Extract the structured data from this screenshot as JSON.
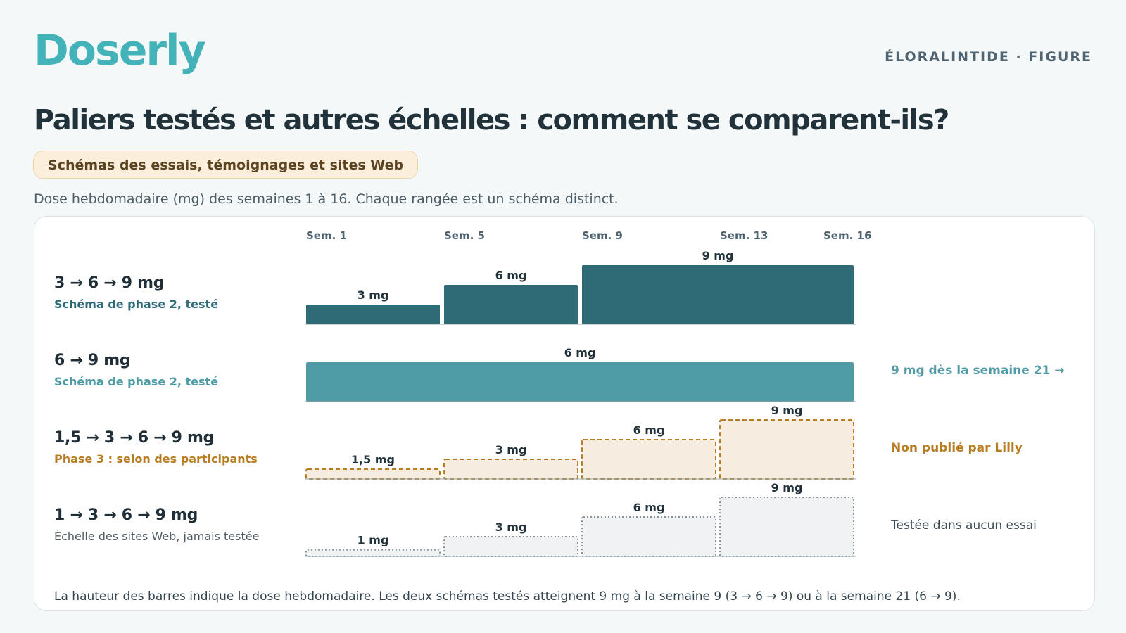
{
  "header": {
    "brand": "Doserly",
    "top_right": "ÉLORALINTIDE · FIGURE",
    "title": "Paliers testés et autres échelles : comment se comparent-ils?",
    "pill": "Schémas des essais, témoignages et sites Web",
    "subtitle": "Dose hebdomadaire (mg) des semaines 1 à 16. Chaque rangée est un schéma distinct."
  },
  "footnote": "La hauteur des barres indique la dose hebdomadaire. Les deux schémas testés atteignent 9 mg à la semaine 9 (3 → 6 → 9) ou à la semaine 21 (6 → 9).",
  "colors": {
    "brand": "#43b3b9",
    "tested_dark": "#2e6b77",
    "tested_light": "#4f9ca7",
    "participant_stroke": "#b87d23",
    "participant_fill": "#f6ece0",
    "website_stroke": "#8a9399",
    "website_fill": "#f0f2f4"
  },
  "chart_data": {
    "type": "bar",
    "x_unit": "semaine",
    "xlim": [
      1,
      16
    ],
    "x_ticks": [
      {
        "week": 1,
        "label": "Sem. 1"
      },
      {
        "week": 5,
        "label": "Sem. 5"
      },
      {
        "week": 9,
        "label": "Sem. 9"
      },
      {
        "week": 13,
        "label": "Sem. 13"
      },
      {
        "week": 16,
        "label": "Sem. 16"
      }
    ],
    "y_unit": "mg",
    "ylim": [
      0,
      9
    ],
    "rows": [
      {
        "name": "3 → 6 → 9 mg",
        "subtitle": "Schéma de phase 2, testé",
        "note": "",
        "style": "tested_dark",
        "segments": [
          {
            "start_week": 1,
            "end_week": 4,
            "dose": 3,
            "label": "3 mg"
          },
          {
            "start_week": 5,
            "end_week": 8,
            "dose": 6,
            "label": "6 mg"
          },
          {
            "start_week": 9,
            "end_week": 16,
            "dose": 9,
            "label": "9 mg"
          }
        ]
      },
      {
        "name": "6 → 9 mg",
        "subtitle": "Schéma de phase 2, testé",
        "note": "9 mg dès la semaine 21 →",
        "style": "tested_light",
        "segments": [
          {
            "start_week": 1,
            "end_week": 16,
            "dose": 6,
            "label": "6 mg"
          }
        ]
      },
      {
        "name": "1,5 → 3 → 6 → 9 mg",
        "subtitle": "Phase 3 : selon des participants",
        "note": "Non publié par Lilly",
        "style": "participant",
        "segments": [
          {
            "start_week": 1,
            "end_week": 4,
            "dose": 1.5,
            "label": "1,5 mg"
          },
          {
            "start_week": 5,
            "end_week": 8,
            "dose": 3,
            "label": "3 mg"
          },
          {
            "start_week": 9,
            "end_week": 12,
            "dose": 6,
            "label": "6 mg"
          },
          {
            "start_week": 13,
            "end_week": 16,
            "dose": 9,
            "label": "9 mg"
          }
        ]
      },
      {
        "name": "1 → 3 → 6 → 9 mg",
        "subtitle": "Échelle des sites Web, jamais testée",
        "note": "Testée dans aucun essai",
        "style": "website",
        "segments": [
          {
            "start_week": 1,
            "end_week": 4,
            "dose": 1,
            "label": "1 mg"
          },
          {
            "start_week": 5,
            "end_week": 8,
            "dose": 3,
            "label": "3 mg"
          },
          {
            "start_week": 9,
            "end_week": 12,
            "dose": 6,
            "label": "6 mg"
          },
          {
            "start_week": 13,
            "end_week": 16,
            "dose": 9,
            "label": "9 mg"
          }
        ]
      }
    ]
  }
}
